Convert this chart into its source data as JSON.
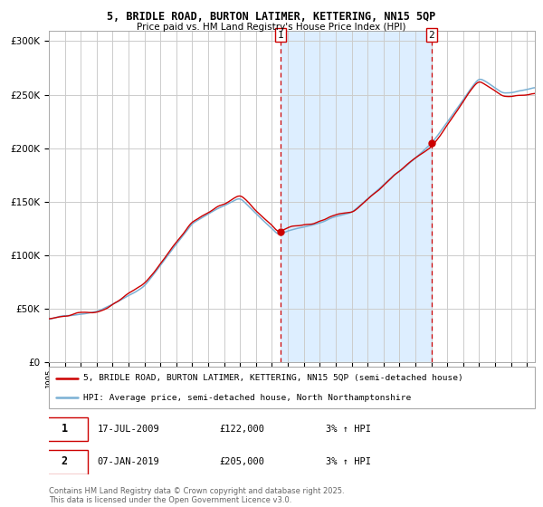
{
  "title_line1": "5, BRIDLE ROAD, BURTON LATIMER, KETTERING, NN15 5QP",
  "title_line2": "Price paid vs. HM Land Registry's House Price Index (HPI)",
  "legend_line1": "5, BRIDLE ROAD, BURTON LATIMER, KETTERING, NN15 5QP (semi-detached house)",
  "legend_line2": "HPI: Average price, semi-detached house, North Northamptonshire",
  "annotation1_label": "1",
  "annotation1_date": "17-JUL-2009",
  "annotation1_price": "£122,000",
  "annotation1_hpi": "3% ↑ HPI",
  "annotation2_label": "2",
  "annotation2_date": "07-JAN-2019",
  "annotation2_price": "£205,000",
  "annotation2_hpi": "3% ↑ HPI",
  "footer": "Contains HM Land Registry data © Crown copyright and database right 2025.\nThis data is licensed under the Open Government Licence v3.0.",
  "red_color": "#cc0000",
  "blue_color": "#7ab0d4",
  "shade_color": "#ddeeff",
  "background_color": "#ffffff",
  "grid_color": "#cccccc",
  "ylim": [
    0,
    310000
  ],
  "yticks": [
    0,
    50000,
    100000,
    150000,
    200000,
    250000,
    300000
  ],
  "xlim_start": 1995.0,
  "xlim_end": 2025.5,
  "marker1_x": 2009.54,
  "marker1_y": 122000,
  "marker2_x": 2019.02,
  "marker2_y": 205000,
  "shade_x1": 2009.54,
  "shade_x2": 2019.02
}
